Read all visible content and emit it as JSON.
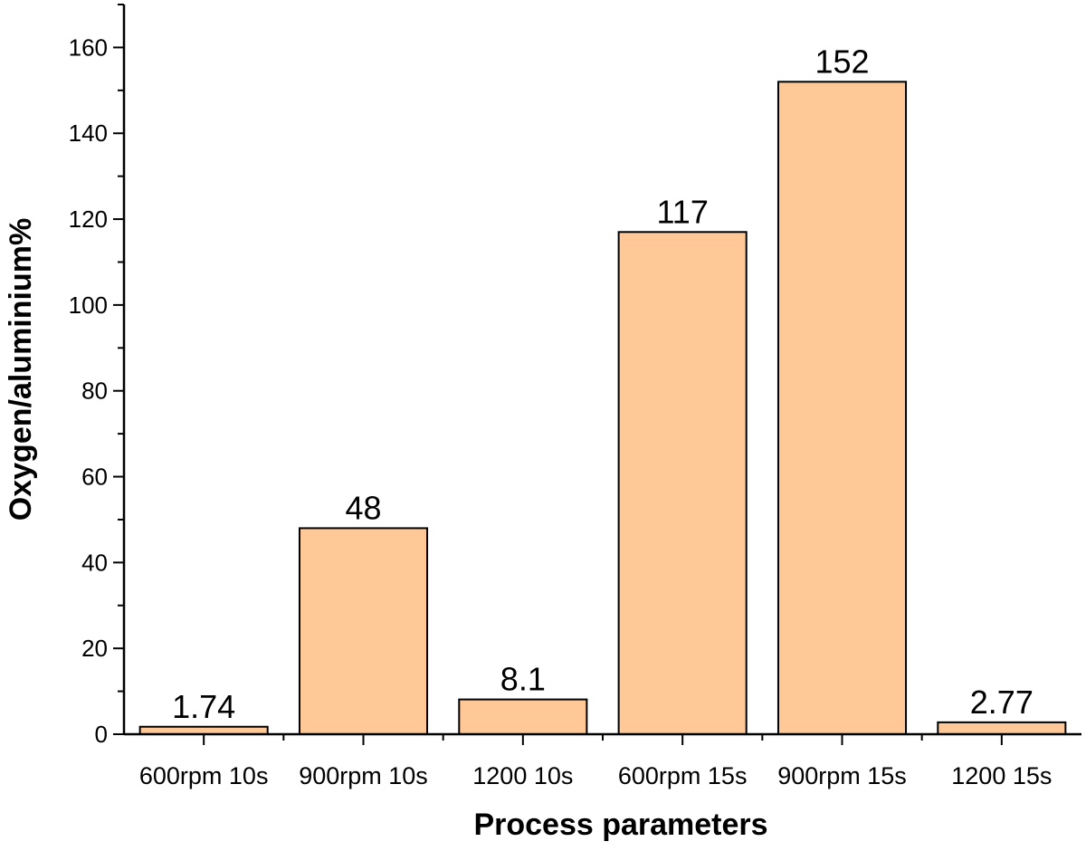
{
  "chart_data": {
    "type": "bar",
    "title": "",
    "xlabel": "Process parameters",
    "ylabel": "Oxygen/aluminium%",
    "categories": [
      "600rpm 10s",
      "900rpm 10s",
      "1200 10s",
      "600rpm 15s",
      "900rpm 15s",
      "1200 15s"
    ],
    "values": [
      1.74,
      48,
      8.1,
      117,
      152,
      2.77
    ],
    "data_labels": [
      "1.74",
      "48",
      "8.1",
      "117",
      "152",
      "2.77"
    ],
    "ylim": [
      0,
      170
    ],
    "yticks": [
      0,
      20,
      40,
      60,
      80,
      100,
      120,
      140,
      160
    ],
    "grid": false,
    "bar_color": "#FFC896",
    "bar_edge_color": "#000000"
  }
}
